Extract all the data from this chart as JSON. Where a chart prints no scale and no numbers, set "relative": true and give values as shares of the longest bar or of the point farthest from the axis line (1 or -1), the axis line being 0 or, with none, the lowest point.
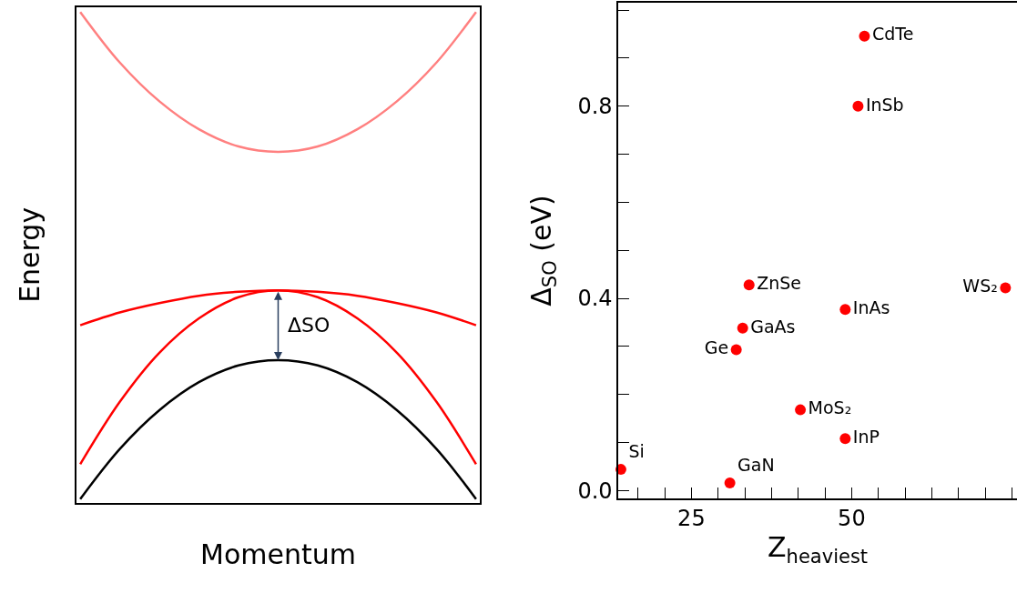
{
  "chart_data": [
    {
      "type": "line",
      "relative": true,
      "xlabel": "Momentum",
      "ylabel": "Energy",
      "categories": [
        null,
        null,
        null,
        null,
        null,
        null,
        null,
        null,
        null,
        null,
        null
      ],
      "series": [
        {
          "color": "#ff8080",
          "values": [
            1.0,
            0.897,
            0.818,
            0.761,
            0.726,
            0.715,
            0.726,
            0.761,
            0.818,
            0.897,
            1.0
          ]
        },
        {
          "color": "#ff0000",
          "values": [
            0.362,
            0.388,
            0.407,
            0.422,
            0.43,
            0.433,
            0.43,
            0.422,
            0.407,
            0.388,
            0.362
          ]
        },
        {
          "color": "#ff0000",
          "values": [
            0.079,
            0.206,
            0.306,
            0.376,
            0.419,
            0.433,
            0.419,
            0.376,
            0.306,
            0.206,
            0.079
          ]
        },
        {
          "color": "#000000",
          "values": [
            0.008,
            0.11,
            0.189,
            0.246,
            0.28,
            0.291,
            0.28,
            0.246,
            0.189,
            0.11,
            0.008
          ]
        }
      ],
      "annotations": [
        "ΔSO"
      ],
      "marker": "none",
      "line_style": "solid"
    },
    {
      "type": "scatter",
      "xlabel": "Z$_{heaviest}$",
      "ylabel": "Δ$_{SO}$ (eV)",
      "x": [
        52,
        51,
        34,
        74,
        49,
        33,
        32,
        42,
        49,
        14,
        31
      ],
      "values": [
        0.946,
        0.8,
        0.428,
        0.422,
        0.377,
        0.338,
        0.293,
        0.168,
        0.108,
        0.044,
        0.016
      ],
      "value_labels": [
        "CdTe",
        "InSb",
        "ZnSe",
        "WS₂",
        "InAs",
        "GaAs",
        "Ge",
        "MoS₂",
        "InP",
        "Si",
        "GaN"
      ],
      "color": "#ff0000",
      "marker": "circle",
      "xlim": [
        13.6,
        75.8
      ],
      "ylim": [
        -0.016,
        1.015
      ],
      "xticks": [
        {
          "value": 16.67,
          "label": null
        },
        {
          "value": 20.83,
          "label": null
        },
        25,
        {
          "value": 29.17,
          "label": null
        },
        {
          "value": 33.33,
          "label": null
        },
        {
          "value": 37.5,
          "label": null
        },
        {
          "value": 41.67,
          "label": null
        },
        {
          "value": 45.83,
          "label": null
        },
        50,
        {
          "value": 54.17,
          "label": null
        },
        {
          "value": 58.33,
          "label": null
        },
        {
          "value": 62.5,
          "label": null
        },
        {
          "value": 66.67,
          "label": null
        },
        {
          "value": 70.83,
          "label": null
        },
        {
          "value": 75,
          "label": null
        }
      ],
      "yticks": [
        {
          "value": 0.0,
          "label": "0.0"
        },
        {
          "value": 0.1,
          "label": null
        },
        {
          "value": 0.2,
          "label": null
        },
        {
          "value": 0.3,
          "label": null
        },
        {
          "value": 0.4,
          "label": "0.4"
        },
        {
          "value": 0.5,
          "label": null
        },
        {
          "value": 0.6,
          "label": null
        },
        {
          "value": 0.7,
          "label": null
        },
        {
          "value": 0.8,
          "label": "0.8"
        },
        {
          "value": 0.9,
          "label": null
        },
        {
          "value": 1.0,
          "label": null
        }
      ]
    }
  ]
}
